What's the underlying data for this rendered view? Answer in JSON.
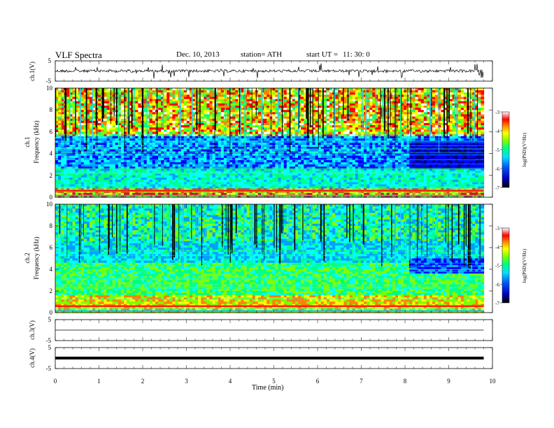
{
  "header": {
    "title": "VLF  Spectra",
    "date": "Dec. 10, 2013",
    "station": "station= ATH",
    "start_label": "start  UT  =",
    "start_time": "11: 30: 0"
  },
  "axes": {
    "xlabel": "Time  (min)",
    "ch1_wave_label": "ch.1(V)",
    "ch1_spec_label": "ch.1",
    "ch2_spec_label": "ch.2",
    "freq_label": "Frequency  (kHz)",
    "ch3_wave_label": "ch.3(V)",
    "ch4_wave_label": "ch.4(V)",
    "colorbar_label": "log(PSD)(V²/Hz)"
  },
  "chart_data": [
    {
      "type": "line",
      "name": "ch1-waveform",
      "ylabel": "ch.1(V)",
      "ylim": [
        -5,
        5
      ],
      "yticks": [
        "5",
        "-5"
      ],
      "xlim": [
        0,
        10
      ],
      "baseline": 0,
      "noise_amplitude": 0.6
    },
    {
      "type": "heatmap",
      "name": "ch1-spectrogram",
      "ylabel": "Frequency (kHz)",
      "ylim": [
        0,
        10
      ],
      "yticks": [
        "0",
        "2",
        "4",
        "6",
        "8",
        "10"
      ],
      "xlim": [
        0,
        9.8
      ],
      "colorbar": {
        "label": "log(PSD)(V²/Hz)",
        "range": [
          -7,
          -3
        ],
        "ticks": [
          "-3",
          "-4",
          "-5",
          "-6",
          "-7"
        ]
      }
    },
    {
      "type": "heatmap",
      "name": "ch2-spectrogram",
      "ylabel": "Frequency (kHz)",
      "ylim": [
        0,
        10
      ],
      "yticks": [
        "0",
        "2",
        "4",
        "6",
        "8",
        "10"
      ],
      "xlim": [
        0,
        9.8
      ],
      "colorbar": {
        "label": "log(PSD)(V²/Hz)",
        "range": [
          -7,
          -3
        ],
        "ticks": [
          "-3",
          "-4",
          "-5",
          "-6",
          "-7"
        ]
      }
    },
    {
      "type": "line",
      "name": "ch3-waveform",
      "ylabel": "ch.3(V)",
      "ylim": [
        -5,
        5
      ],
      "yticks": [
        "5",
        "-5"
      ],
      "xlim": [
        0,
        10
      ],
      "baseline": 0
    },
    {
      "type": "line",
      "name": "ch4-waveform",
      "ylabel": "ch.4(V)",
      "ylim": [
        -5,
        5
      ],
      "yticks": [
        "5",
        "-5"
      ],
      "xlim": [
        0,
        10
      ],
      "baseline": 0
    }
  ],
  "xaxis": {
    "label": "Time  (min)",
    "range": [
      0,
      10
    ],
    "ticks": [
      "0",
      "1",
      "2",
      "3",
      "4",
      "5",
      "6",
      "7",
      "8",
      "9",
      "10"
    ]
  },
  "colors": {
    "colormap": [
      "#000080",
      "#0000ff",
      "#00a0ff",
      "#00ffff",
      "#00ff80",
      "#80ff00",
      "#ffff00",
      "#ff8000",
      "#ff0000",
      "#ffffff"
    ]
  }
}
